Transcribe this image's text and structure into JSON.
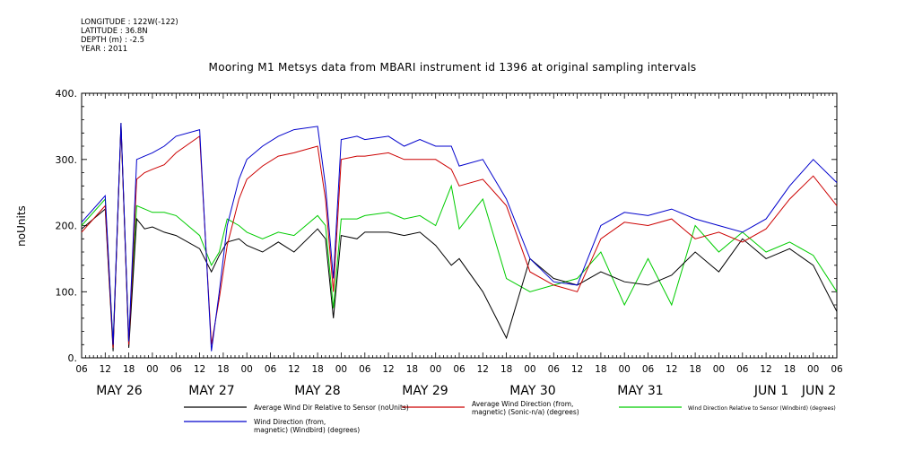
{
  "meta": {
    "longitude": "LONGITUDE : 122W(-122)",
    "latitude": "LATITUDE : 36.8N",
    "depth": "DEPTH (m) : -2.5",
    "year": "YEAR : 2011"
  },
  "chart_data": {
    "type": "line",
    "title": "Mooring M1 Metsys data from MBARI instrument id 1396 at original sampling intervals",
    "xlabel": "",
    "ylabel": "noUnits",
    "ylim": [
      0,
      400
    ],
    "y_ticks": [
      "0.",
      "100.",
      "200.",
      "300.",
      "400."
    ],
    "x_hour_ticks": [
      "06",
      "12",
      "18",
      "00",
      "06",
      "12",
      "18",
      "00",
      "06",
      "12",
      "18",
      "00",
      "06",
      "12",
      "18",
      "00",
      "06",
      "12",
      "18",
      "00",
      "06",
      "12",
      "18",
      "00",
      "06",
      "12",
      "18",
      "00",
      "06",
      "12",
      "18",
      "00",
      "06"
    ],
    "x_day_labels": [
      "MAY 26",
      "MAY 27",
      "MAY 28",
      "MAY 29",
      "MAY 30",
      "MAY 31",
      "JUN  1",
      "JUN  2"
    ],
    "x_hours_from_first_tick": [
      0,
      6,
      8,
      10,
      12,
      14,
      16,
      18,
      21,
      24,
      30,
      33,
      35,
      37,
      40,
      42,
      46,
      50,
      54,
      60,
      62,
      64,
      66,
      70,
      72,
      78,
      82,
      86,
      90,
      94,
      96,
      102,
      108,
      114,
      120,
      126,
      132,
      138,
      144,
      150,
      156,
      162,
      168,
      174,
      180,
      186,
      192
    ],
    "legend_placement": "bottom",
    "series": [
      {
        "name": "Average Wind Dir Relative to Sensor (noUnits)",
        "color": "#000000",
        "values": [
          195,
          225,
          10,
          355,
          15,
          210,
          195,
          198,
          190,
          185,
          165,
          130,
          155,
          175,
          180,
          170,
          160,
          175,
          160,
          195,
          180,
          60,
          185,
          180,
          190,
          190,
          185,
          190,
          170,
          140,
          150,
          100,
          30,
          150,
          120,
          110,
          130,
          115,
          110,
          125,
          160,
          130,
          180,
          150,
          165,
          140,
          70
        ]
      },
      {
        "name": "Average Wind Direction (from, magnetic) (Sonic-n/a) (degrees)",
        "color": "#cc0000",
        "values": [
          190,
          230,
          15,
          350,
          20,
          270,
          280,
          285,
          292,
          310,
          335,
          20,
          90,
          170,
          240,
          270,
          290,
          305,
          310,
          320,
          240,
          100,
          300,
          305,
          305,
          310,
          300,
          300,
          300,
          285,
          260,
          270,
          230,
          130,
          110,
          100,
          180,
          205,
          200,
          210,
          180,
          190,
          175,
          195,
          240,
          275,
          230
        ]
      },
      {
        "name": "Wind Direction Relative to Sensor (Windbird) (degrees)",
        "color": "#00cc00",
        "values": [
          200,
          240,
          20,
          350,
          25,
          230,
          225,
          220,
          220,
          215,
          185,
          140,
          160,
          210,
          200,
          190,
          180,
          190,
          185,
          215,
          200,
          75,
          210,
          210,
          215,
          220,
          210,
          215,
          200,
          260,
          195,
          240,
          120,
          100,
          110,
          120,
          160,
          80,
          150,
          80,
          200,
          160,
          190,
          160,
          175,
          155,
          100
        ]
      },
      {
        "name": "Wind Direction (from, magnetic) (Windbird) (degrees)",
        "color": "#0000cc",
        "values": [
          205,
          245,
          20,
          355,
          25,
          300,
          305,
          310,
          320,
          335,
          345,
          10,
          100,
          200,
          270,
          300,
          320,
          335,
          345,
          350,
          260,
          120,
          330,
          335,
          330,
          335,
          320,
          330,
          320,
          320,
          290,
          300,
          240,
          150,
          115,
          110,
          200,
          220,
          215,
          225,
          210,
          200,
          190,
          210,
          260,
          300,
          265
        ]
      }
    ]
  },
  "legend": [
    {
      "line1": "Average Wind Dir Relative to Sensor (noUnits)",
      "line2": ""
    },
    {
      "line1": "Average Wind Direction (from,",
      "line2": "magnetic) (Sonic-n/a) (degrees)"
    },
    {
      "line1": "Wind Direction Relative to Sensor (Windbird) (degrees)",
      "line2": ""
    },
    {
      "line1": "Wind Direction (from,",
      "line2": "magnetic) (Windbird) (degrees)"
    }
  ]
}
